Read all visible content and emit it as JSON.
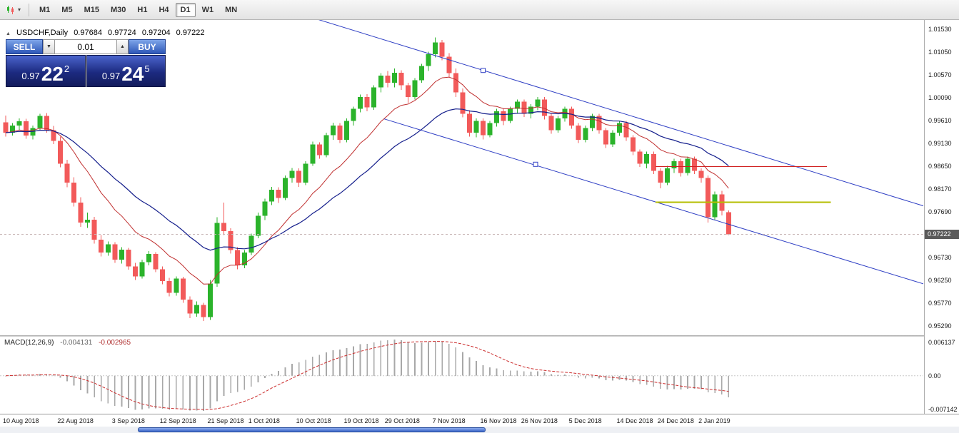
{
  "toolbar": {
    "timeframes": [
      "M1",
      "M5",
      "M15",
      "M30",
      "H1",
      "H4",
      "D1",
      "W1",
      "MN"
    ],
    "active_timeframe": "D1"
  },
  "icons": {
    "caret_down": "▾",
    "volume_down": "▼",
    "volume_up": "▲",
    "collapse": "▲"
  },
  "chart_header": {
    "symbol_label": "USDCHF,Daily",
    "open": "0.97684",
    "high": "0.97724",
    "low": "0.97204",
    "close": "0.97222"
  },
  "trade_panel": {
    "sell_label": "SELL",
    "buy_label": "BUY",
    "volume": "0.01",
    "sell": {
      "prefix": "0.97",
      "pips": "22",
      "point": "2"
    },
    "buy": {
      "prefix": "0.97",
      "pips": "24",
      "point": "5"
    }
  },
  "price_axis": {
    "labels": [
      "1.01530",
      "1.01050",
      "1.00570",
      "1.00090",
      "0.99610",
      "0.99130",
      "0.98650",
      "0.98170",
      "0.97690",
      "0.96730",
      "0.96250",
      "0.95770",
      "0.95290"
    ],
    "current_price": "0.97222"
  },
  "macd": {
    "label": "MACD(12,26,9)",
    "value1": "-0.004131",
    "value2": "-0.002965",
    "axis_top": "0.006137",
    "axis_zero": "0.00",
    "axis_bottom": "-0.007142",
    "fast": 12,
    "slow": 26,
    "signal": 9
  },
  "chart_data": {
    "type": "candlestick",
    "title": "USDCHF Daily",
    "symbol": "USDCHF",
    "timeframe": "Daily",
    "price_min": 0.951,
    "price_max": 1.0173,
    "candles": [
      [
        0.9958,
        0.9972,
        0.9928,
        0.9936
      ],
      [
        0.9936,
        0.9956,
        0.993,
        0.9951
      ],
      [
        0.9951,
        0.9966,
        0.9941,
        0.996
      ],
      [
        0.996,
        0.9965,
        0.9923,
        0.993
      ],
      [
        0.993,
        0.9951,
        0.9922,
        0.9946
      ],
      [
        0.9946,
        0.9976,
        0.9941,
        0.9971
      ],
      [
        0.9971,
        0.9977,
        0.9936,
        0.9941
      ],
      [
        0.9941,
        0.995,
        0.9912,
        0.9919
      ],
      [
        0.9919,
        0.9928,
        0.9863,
        0.9871
      ],
      [
        0.9871,
        0.9879,
        0.9821,
        0.9831
      ],
      [
        0.9831,
        0.9842,
        0.9781,
        0.9789
      ],
      [
        0.9789,
        0.98,
        0.9738,
        0.9747
      ],
      [
        0.9747,
        0.9768,
        0.9736,
        0.9753
      ],
      [
        0.9753,
        0.9759,
        0.9703,
        0.9711
      ],
      [
        0.9711,
        0.9721,
        0.9676,
        0.9684
      ],
      [
        0.9684,
        0.9707,
        0.9677,
        0.9701
      ],
      [
        0.9701,
        0.9706,
        0.9662,
        0.9669
      ],
      [
        0.9669,
        0.9695,
        0.9661,
        0.969
      ],
      [
        0.969,
        0.9694,
        0.9648,
        0.9655
      ],
      [
        0.9655,
        0.9662,
        0.9626,
        0.9634
      ],
      [
        0.9634,
        0.9669,
        0.9629,
        0.9664
      ],
      [
        0.9664,
        0.9687,
        0.9657,
        0.9681
      ],
      [
        0.9681,
        0.9685,
        0.9643,
        0.9649
      ],
      [
        0.9649,
        0.9655,
        0.9617,
        0.9624
      ],
      [
        0.9624,
        0.9631,
        0.9592,
        0.9599
      ],
      [
        0.9599,
        0.9634,
        0.9593,
        0.9629
      ],
      [
        0.9629,
        0.9633,
        0.9578,
        0.9585
      ],
      [
        0.9585,
        0.9592,
        0.9546,
        0.9556
      ],
      [
        0.9556,
        0.9581,
        0.9549,
        0.9574
      ],
      [
        0.9574,
        0.9578,
        0.954,
        0.9548
      ],
      [
        0.9548,
        0.9626,
        0.9542,
        0.9619
      ],
      [
        0.9619,
        0.9758,
        0.9612,
        0.9746
      ],
      [
        0.9746,
        0.9789,
        0.9721,
        0.9729
      ],
      [
        0.9729,
        0.9735,
        0.9682,
        0.9689
      ],
      [
        0.9689,
        0.9695,
        0.9649,
        0.9657
      ],
      [
        0.9657,
        0.9689,
        0.9651,
        0.9684
      ],
      [
        0.9684,
        0.9724,
        0.9679,
        0.9719
      ],
      [
        0.9719,
        0.9768,
        0.9714,
        0.9761
      ],
      [
        0.9761,
        0.9797,
        0.9752,
        0.9791
      ],
      [
        0.9791,
        0.9822,
        0.9784,
        0.9816
      ],
      [
        0.9816,
        0.9821,
        0.9788,
        0.9799
      ],
      [
        0.9799,
        0.9846,
        0.9794,
        0.9841
      ],
      [
        0.9841,
        0.9862,
        0.9831,
        0.9856
      ],
      [
        0.9856,
        0.9861,
        0.9822,
        0.9831
      ],
      [
        0.9831,
        0.9876,
        0.9826,
        0.9871
      ],
      [
        0.9871,
        0.9917,
        0.9866,
        0.9911
      ],
      [
        0.9911,
        0.9916,
        0.9881,
        0.9889
      ],
      [
        0.9889,
        0.9936,
        0.9884,
        0.9931
      ],
      [
        0.9931,
        0.9957,
        0.9921,
        0.9951
      ],
      [
        0.9951,
        0.9956,
        0.9914,
        0.9921
      ],
      [
        0.9921,
        0.9966,
        0.9916,
        0.9961
      ],
      [
        0.9961,
        0.9991,
        0.9951,
        0.9986
      ],
      [
        0.9986,
        1.0016,
        0.9979,
        1.0011
      ],
      [
        1.0011,
        1.0017,
        0.9981,
        0.9989
      ],
      [
        0.9989,
        1.0036,
        0.9984,
        1.0031
      ],
      [
        1.0031,
        1.0061,
        1.0021,
        1.0056
      ],
      [
        1.0056,
        1.0066,
        1.0031,
        1.0041
      ],
      [
        1.0041,
        1.0071,
        1.0031,
        1.0062
      ],
      [
        1.0062,
        1.0067,
        1.0026,
        1.0036
      ],
      [
        1.0036,
        1.0041,
        0.9999,
        1.0011
      ],
      [
        1.0011,
        1.0051,
        1.0006,
        1.0046
      ],
      [
        1.0046,
        1.0081,
        1.0041,
        1.0076
      ],
      [
        1.0076,
        1.0106,
        1.0066,
        1.0101
      ],
      [
        1.0101,
        1.0136,
        1.0094,
        1.0126
      ],
      [
        1.0126,
        1.0131,
        1.0088,
        1.0096
      ],
      [
        1.0096,
        1.0103,
        1.0052,
        1.0061
      ],
      [
        1.0061,
        1.0071,
        1.0011,
        1.0021
      ],
      [
        1.0021,
        1.0029,
        0.9968,
        0.9976
      ],
      [
        0.9976,
        0.9983,
        0.9928,
        0.9936
      ],
      [
        0.9936,
        0.9966,
        0.9926,
        0.9961
      ],
      [
        0.9961,
        0.9966,
        0.9922,
        0.9931
      ],
      [
        0.9931,
        0.9961,
        0.9926,
        0.9956
      ],
      [
        0.9956,
        0.9986,
        0.9949,
        0.9981
      ],
      [
        0.9981,
        0.9986,
        0.9952,
        0.9961
      ],
      [
        0.9961,
        0.9991,
        0.9956,
        0.9986
      ],
      [
        0.9986,
        1.0006,
        0.9976,
        1.0001
      ],
      [
        1.0001,
        1.0006,
        0.9969,
        0.9976
      ],
      [
        0.9976,
        0.9996,
        0.9966,
        0.9991
      ],
      [
        0.9991,
        1.0011,
        0.9983,
        1.0006
      ],
      [
        1.0006,
        1.0011,
        0.9964,
        0.9971
      ],
      [
        0.9971,
        0.9976,
        0.9934,
        0.9941
      ],
      [
        0.9941,
        0.9971,
        0.9936,
        0.9966
      ],
      [
        0.9966,
        0.9991,
        0.9959,
        0.9986
      ],
      [
        0.9986,
        0.9991,
        0.9944,
        0.9951
      ],
      [
        0.9951,
        0.9956,
        0.9914,
        0.9921
      ],
      [
        0.9921,
        0.9951,
        0.9916,
        0.9946
      ],
      [
        0.9946,
        0.9976,
        0.9939,
        0.9971
      ],
      [
        0.9971,
        0.9976,
        0.9934,
        0.9941
      ],
      [
        0.9941,
        0.9946,
        0.9904,
        0.9911
      ],
      [
        0.9911,
        0.9941,
        0.9906,
        0.9936
      ],
      [
        0.9936,
        0.9961,
        0.9929,
        0.9956
      ],
      [
        0.9956,
        0.9961,
        0.9919,
        0.9926
      ],
      [
        0.9926,
        0.9931,
        0.9889,
        0.9896
      ],
      [
        0.9896,
        0.9901,
        0.9864,
        0.9871
      ],
      [
        0.9871,
        0.9896,
        0.9861,
        0.9891
      ],
      [
        0.9891,
        0.9896,
        0.9849,
        0.9856
      ],
      [
        0.9856,
        0.9861,
        0.9819,
        0.9831
      ],
      [
        0.9831,
        0.9866,
        0.9826,
        0.9861
      ],
      [
        0.9861,
        0.9881,
        0.9851,
        0.9876
      ],
      [
        0.9876,
        0.9881,
        0.9844,
        0.9851
      ],
      [
        0.9851,
        0.9886,
        0.9846,
        0.9881
      ],
      [
        0.9881,
        0.9886,
        0.9849,
        0.9856
      ],
      [
        0.9856,
        0.9861,
        0.9831,
        0.9841
      ],
      [
        0.9841,
        0.9846,
        0.9747,
        0.9758
      ],
      [
        0.9758,
        0.9812,
        0.9752,
        0.9806
      ],
      [
        0.9806,
        0.9814,
        0.9762,
        0.9772
      ],
      [
        0.97684,
        0.97724,
        0.97204,
        0.97222
      ]
    ],
    "x_ticks": [
      {
        "index": 0,
        "label": "10 Aug 2018"
      },
      {
        "index": 8,
        "label": "22 Aug 2018"
      },
      {
        "index": 16,
        "label": "3 Sep 2018"
      },
      {
        "index": 23,
        "label": "12 Sep 2018"
      },
      {
        "index": 30,
        "label": "21 Sep 2018"
      },
      {
        "index": 36,
        "label": "1 Oct 2018"
      },
      {
        "index": 43,
        "label": "10 Oct 2018"
      },
      {
        "index": 50,
        "label": "19 Oct 2018"
      },
      {
        "index": 56,
        "label": "29 Oct 2018"
      },
      {
        "index": 63,
        "label": "7 Nov 2018"
      },
      {
        "index": 70,
        "label": "16 Nov 2018"
      },
      {
        "index": 76,
        "label": "26 Nov 2018"
      },
      {
        "index": 83,
        "label": "5 Dec 2018"
      },
      {
        "index": 90,
        "label": "14 Dec 2018"
      },
      {
        "index": 96,
        "label": "24 Dec 2018"
      },
      {
        "index": 102,
        "label": "2 Jan 2019"
      }
    ],
    "overlays": {
      "ema_fast": 12,
      "ema_slow": 26,
      "trendlines": [
        {
          "points": [
            [
              44,
              1.0182
            ],
            [
              134.6,
              0.9782
            ]
          ],
          "marker": [
            70,
            1.0067
          ]
        },
        {
          "points": [
            [
              55.5,
              0.9965
            ],
            [
              134.6,
              0.9618
            ]
          ],
          "marker": [
            77.7,
            0.98695
          ]
        }
      ],
      "hlines": [
        {
          "price": 0.9865,
          "from": 95.3,
          "to": 120.4,
          "color": "#d02020",
          "width": 1
        },
        {
          "price": 0.979,
          "from": 95.3,
          "to": 121.0,
          "color": "#b4bd00",
          "width": 2
        }
      ],
      "bid_line": 0.97222
    },
    "colors": {
      "up": "#2bb32b",
      "down": "#f25a5a",
      "ema_fast": "#c03030",
      "ema_slow": "#151f8c",
      "trend": "#2f3fc4",
      "macd_bar": "#a8a8a8",
      "macd_signal": "#cc2f2f"
    }
  }
}
